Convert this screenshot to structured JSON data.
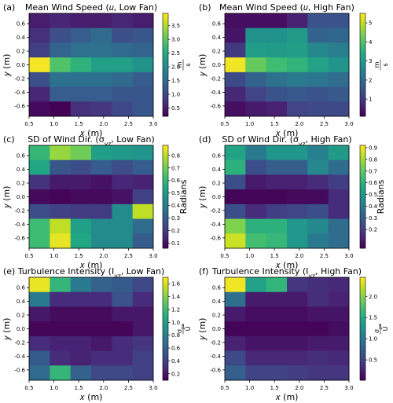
{
  "chart_data": [
    {
      "panel_label": "(a)",
      "title": "Mean Wind Speed (𝑢, Low Fan)",
      "type": "heatmap",
      "xlabel": "𝑥 (m)",
      "ylabel": "𝑦 (m)",
      "x_ticks": [
        "0.5",
        "1.0",
        "1.5",
        "2.0",
        "2.5",
        "3.0"
      ],
      "y_ticks": [
        "0.6",
        "0.4",
        "0.2",
        "0.0",
        "-0.2",
        "-0.4",
        "-0.6"
      ],
      "xlim": [
        0.5,
        3.0
      ],
      "ylim": [
        -0.75,
        0.75
      ],
      "rows_y": [
        0.6,
        0.4,
        0.2,
        0.0,
        -0.2,
        -0.4,
        -0.6
      ],
      "values": [
        [
          0.5,
          0.6,
          0.5,
          0.5,
          0.6,
          0.5
        ],
        [
          0.7,
          1.1,
          1.3,
          1.5,
          1.1,
          1.2
        ],
        [
          0.9,
          1.4,
          1.6,
          1.6,
          1.5,
          1.4
        ],
        [
          3.9,
          2.9,
          2.6,
          2.3,
          2.3,
          2.1
        ],
        [
          1.1,
          1.6,
          1.6,
          1.6,
          1.5,
          1.3
        ],
        [
          0.6,
          1.3,
          1.3,
          1.3,
          1.2,
          1.2
        ],
        [
          0.3,
          0.2,
          0.7,
          0.8,
          1.0,
          1.2
        ]
      ],
      "vmin": 0.2,
      "vmax": 3.95,
      "cbar_ticks": [
        "0.5",
        "1.0",
        "1.5",
        "2.0",
        "2.5",
        "3.0",
        "3.5"
      ],
      "cbar_label": "m/s"
    },
    {
      "panel_label": "(b)",
      "title": "Mean Wind Speed (𝑢, High Fan)",
      "type": "heatmap",
      "xlabel": "𝑥 (m)",
      "ylabel": "𝑦 (m)",
      "x_ticks": [
        "0.5",
        "1.0",
        "1.5",
        "2.0",
        "2.5",
        "3.0"
      ],
      "y_ticks": [
        "0.6",
        "0.4",
        "0.2",
        "0.0",
        "-0.2",
        "-0.4",
        "-0.6"
      ],
      "xlim": [
        0.5,
        3.0
      ],
      "ylim": [
        -0.75,
        0.75
      ],
      "rows_y": [
        0.6,
        0.4,
        0.2,
        0.0,
        -0.2,
        -0.4,
        -0.6
      ],
      "values": [
        [
          0.3,
          0.3,
          0.3,
          0.6,
          1.5,
          1.5
        ],
        [
          0.4,
          2.8,
          2.8,
          3.0,
          1.8,
          1.9
        ],
        [
          1.0,
          3.1,
          3.0,
          3.1,
          2.6,
          2.4
        ],
        [
          5.4,
          4.2,
          3.8,
          3.6,
          3.2,
          2.9
        ],
        [
          1.3,
          1.8,
          2.1,
          2.3,
          2.2,
          2.0
        ],
        [
          0.7,
          1.2,
          1.5,
          1.6,
          1.5,
          1.6
        ],
        [
          0.3,
          0.5,
          0.6,
          1.2,
          1.3,
          1.3
        ]
      ],
      "vmin": 0.1,
      "vmax": 5.5,
      "cbar_ticks": [
        "1",
        "2",
        "3",
        "4",
        "5"
      ],
      "cbar_label": "m/s"
    },
    {
      "panel_label": "(c)",
      "title": "SD of Wind Dir. (σ_yz, Low Fan)",
      "type": "heatmap",
      "xlabel": "𝑥 (m)",
      "ylabel": "𝑦 (m)",
      "x_ticks": [
        "0.5",
        "1.0",
        "1.5",
        "2.0",
        "2.5",
        "3.0"
      ],
      "y_ticks": [
        "0.6",
        "0.4",
        "0.2",
        "0.0",
        "-0.2",
        "-0.4",
        "-0.6"
      ],
      "xlim": [
        0.5,
        3.0
      ],
      "ylim": [
        -0.75,
        0.75
      ],
      "rows_y": [
        0.6,
        0.4,
        0.2,
        0.0,
        -0.2,
        -0.4,
        -0.6
      ],
      "values": [
        [
          0.6,
          0.75,
          0.7,
          0.52,
          0.5,
          0.48
        ],
        [
          0.55,
          0.28,
          0.25,
          0.3,
          0.25,
          0.3
        ],
        [
          0.18,
          0.12,
          0.12,
          0.1,
          0.15,
          0.14
        ],
        [
          0.08,
          0.07,
          0.08,
          0.08,
          0.1,
          0.22
        ],
        [
          0.25,
          0.22,
          0.2,
          0.2,
          0.45,
          0.8
        ],
        [
          0.62,
          0.8,
          0.52,
          0.45,
          0.45,
          0.35
        ],
        [
          0.62,
          0.85,
          0.55,
          0.45,
          0.45,
          0.3
        ]
      ],
      "vmin": 0.06,
      "vmax": 0.88,
      "cbar_ticks": [
        "0.1",
        "0.2",
        "0.3",
        "0.4",
        "0.5",
        "0.6",
        "0.7",
        "0.8"
      ],
      "cbar_label": "Radians"
    },
    {
      "panel_label": "(d)",
      "title": "SD of Wind Dir. (σ_yz, High Fan)",
      "type": "heatmap",
      "xlabel": "𝑥 (m)",
      "ylabel": "𝑦 (m)",
      "x_ticks": [
        "0.5",
        "1.0",
        "1.5",
        "2.0",
        "2.5",
        "3.0"
      ],
      "y_ticks": [
        "0.6",
        "0.4",
        "0.2",
        "0.0",
        "-0.2",
        "-0.4",
        "-0.6"
      ],
      "xlim": [
        0.5,
        3.0
      ],
      "ylim": [
        -0.75,
        0.75
      ],
      "rows_y": [
        0.6,
        0.4,
        0.2,
        0.0,
        -0.2,
        -0.4,
        -0.6
      ],
      "values": [
        [
          0.55,
          0.4,
          0.5,
          0.5,
          0.42,
          0.52
        ],
        [
          0.6,
          0.25,
          0.3,
          0.3,
          0.45,
          0.35
        ],
        [
          0.25,
          0.1,
          0.12,
          0.12,
          0.15,
          0.2
        ],
        [
          0.05,
          0.05,
          0.05,
          0.06,
          0.06,
          0.15
        ],
        [
          0.25,
          0.15,
          0.2,
          0.22,
          0.25,
          0.15
        ],
        [
          0.75,
          0.6,
          0.6,
          0.5,
          0.45,
          0.35
        ],
        [
          0.85,
          0.65,
          0.62,
          0.5,
          0.4,
          0.35
        ]
      ],
      "vmin": 0.04,
      "vmax": 0.92,
      "cbar_ticks": [
        "0.2",
        "0.3",
        "0.4",
        "0.5",
        "0.6",
        "0.7",
        "0.8",
        "0.9"
      ],
      "cbar_label": "Radians"
    },
    {
      "panel_label": "(e)",
      "title": "Turbulence Intensity (I_yz, Low Fan)",
      "type": "heatmap",
      "xlabel": "𝑥 (m)",
      "ylabel": "𝑦 (m)",
      "x_ticks": [
        "0.5",
        "1.0",
        "1.5",
        "2.0",
        "2.5",
        "3.0"
      ],
      "y_ticks": [
        "0.6",
        "0.4",
        "0.2",
        "0.0",
        "-0.2",
        "-0.4",
        "-0.6"
      ],
      "xlim": [
        0.5,
        3.0
      ],
      "ylim": [
        -0.75,
        0.75
      ],
      "rows_y": [
        0.6,
        0.4,
        0.2,
        0.0,
        -0.2,
        -0.4,
        -0.6
      ],
      "values": [
        [
          1.65,
          1.15,
          0.75,
          0.6,
          0.55,
          0.45
        ],
        [
          0.75,
          0.3,
          0.3,
          0.3,
          0.5,
          0.3
        ],
        [
          0.2,
          0.15,
          0.15,
          0.15,
          0.2,
          0.2
        ],
        [
          0.12,
          0.12,
          0.12,
          0.12,
          0.12,
          0.2
        ],
        [
          0.3,
          0.25,
          0.25,
          0.2,
          0.3,
          0.35
        ],
        [
          0.55,
          0.3,
          0.25,
          0.3,
          0.3,
          0.4
        ],
        [
          0.65,
          1.15,
          0.6,
          0.45,
          0.45,
          0.4
        ]
      ],
      "vmin": 0.1,
      "vmax": 1.7,
      "cbar_ticks": [
        "0.2",
        "0.4",
        "0.6",
        "0.8",
        "1.0",
        "1.2",
        "1.4",
        "1.6"
      ],
      "cbar_label": "σ_yz / Ū"
    },
    {
      "panel_label": "(f)",
      "title": "Turbulence Intensity (I_yz, High Fan)",
      "type": "heatmap",
      "xlabel": "𝑥 (m)",
      "ylabel": "𝑦 (m)",
      "x_ticks": [
        "0.5",
        "1.0",
        "1.5",
        "2.0",
        "2.5",
        "3.0"
      ],
      "y_ticks": [
        "0.6",
        "0.4",
        "0.2",
        "0.0",
        "-0.2",
        "-0.4",
        "-0.6"
      ],
      "xlim": [
        0.5,
        3.0
      ],
      "ylim": [
        -0.75,
        0.75
      ],
      "rows_y": [
        0.6,
        0.4,
        0.2,
        0.0,
        -0.2,
        -0.4,
        -0.6
      ],
      "values": [
        [
          2.4,
          1.4,
          1.6,
          0.4,
          0.35,
          0.3
        ],
        [
          0.9,
          0.2,
          0.2,
          0.2,
          0.35,
          0.25
        ],
        [
          0.2,
          0.1,
          0.1,
          0.1,
          0.15,
          0.15
        ],
        [
          0.05,
          0.05,
          0.05,
          0.05,
          0.05,
          0.1
        ],
        [
          0.25,
          0.15,
          0.15,
          0.15,
          0.2,
          0.2
        ],
        [
          0.55,
          0.3,
          0.3,
          0.3,
          0.35,
          0.3
        ],
        [
          0.75,
          0.5,
          0.5,
          0.45,
          0.4,
          0.4
        ]
      ],
      "vmin": 0.02,
      "vmax": 2.45,
      "cbar_ticks": [
        "0.5",
        "1.0",
        "1.5",
        "2.0"
      ],
      "cbar_label": "σ_yz / Ū"
    }
  ]
}
